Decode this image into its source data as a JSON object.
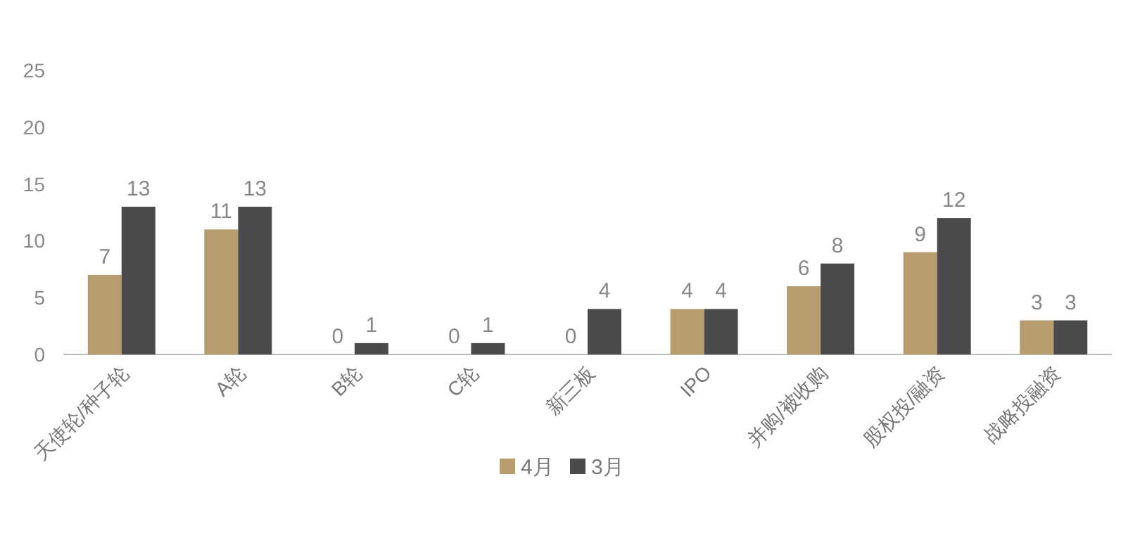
{
  "chart_data": {
    "type": "bar",
    "categories": [
      "天使轮/种子轮",
      "A轮",
      "B轮",
      "C轮",
      "新三板",
      "IPO",
      "并购/被收购",
      "股权投/融资",
      "战略投融资"
    ],
    "series": [
      {
        "name": "4月",
        "color": "#b89c6e",
        "values": [
          7,
          11,
          0,
          0,
          0,
          4,
          6,
          9,
          3
        ]
      },
      {
        "name": "3月",
        "color": "#4b4b4d",
        "values": [
          13,
          13,
          1,
          1,
          4,
          4,
          8,
          12,
          3
        ]
      }
    ],
    "ylim": [
      0,
      25
    ],
    "yticks": [
      0,
      5,
      10,
      15,
      20,
      25
    ],
    "data_labels": true,
    "legend": "bottom"
  }
}
